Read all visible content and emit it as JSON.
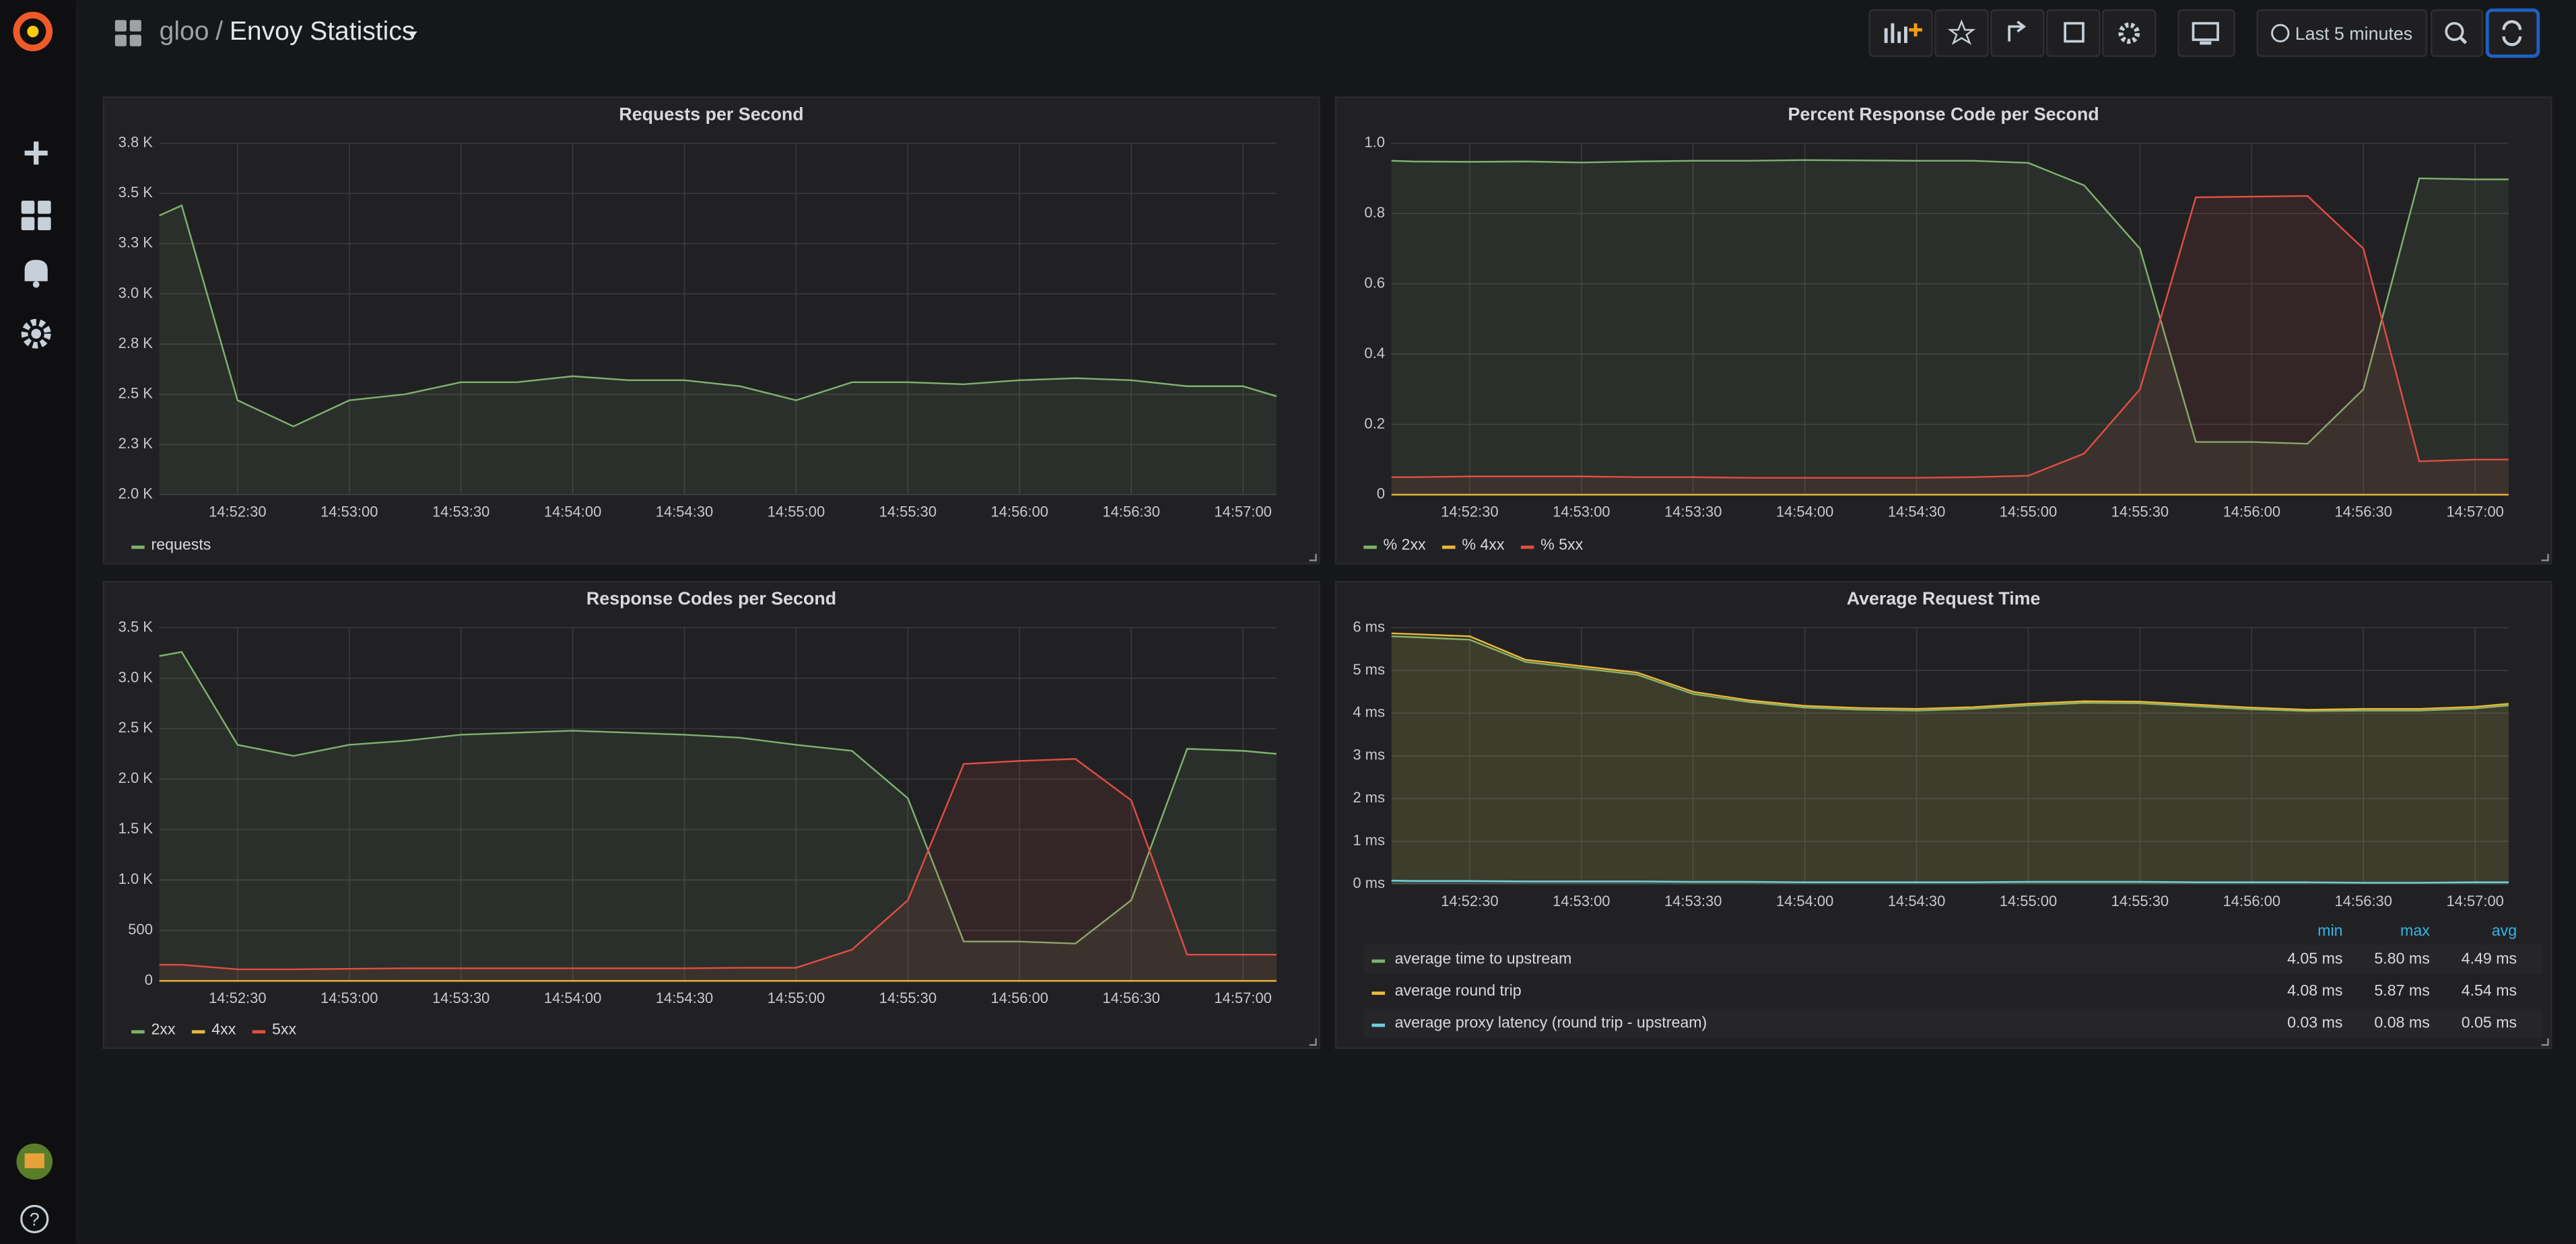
{
  "header": {
    "folder": "gloo",
    "separator": "/",
    "title": "Envoy Statistics",
    "time_range": "Last 5 minutes"
  },
  "sidebar": {
    "help": "?"
  },
  "chart_data": [
    {
      "type": "line",
      "title": "Requests per Second",
      "fill": true,
      "grid": true,
      "x": [
        "14:52:09",
        "14:52:15",
        "14:52:30",
        "14:52:45",
        "14:53:00",
        "14:53:15",
        "14:53:30",
        "14:53:45",
        "14:54:00",
        "14:54:15",
        "14:54:30",
        "14:54:45",
        "14:55:00",
        "14:55:15",
        "14:55:30",
        "14:55:45",
        "14:56:00",
        "14:56:15",
        "14:56:30",
        "14:56:45",
        "14:57:00",
        "14:57:09"
      ],
      "xlim": [
        "14:52:09",
        "14:57:09"
      ],
      "xticks": [
        "14:52:30",
        "14:53:00",
        "14:53:30",
        "14:54:00",
        "14:54:30",
        "14:55:00",
        "14:55:30",
        "14:56:00",
        "14:56:30",
        "14:57:00"
      ],
      "ylim": [
        2000,
        3750
      ],
      "yticks": [
        {
          "value": 2000,
          "label": "2.0 K"
        },
        {
          "value": 2250,
          "label": "2.3 K"
        },
        {
          "value": 2500,
          "label": "2.5 K"
        },
        {
          "value": 2750,
          "label": "2.8 K"
        },
        {
          "value": 3000,
          "label": "3.0 K"
        },
        {
          "value": 3250,
          "label": "3.3 K"
        },
        {
          "value": 3500,
          "label": "3.5 K"
        },
        {
          "value": 3750,
          "label": "3.8 K"
        }
      ],
      "series": [
        {
          "name": "requests",
          "color": "#7eb26d",
          "values": [
            3390,
            3440,
            2470,
            2340,
            2470,
            2500,
            2560,
            2560,
            2590,
            2570,
            2570,
            2540,
            2470,
            2560,
            2560,
            2550,
            2570,
            2580,
            2570,
            2540,
            2540,
            2490
          ]
        }
      ]
    },
    {
      "type": "line",
      "title": "Percent Response Code per Second",
      "fill": true,
      "grid": true,
      "x": [
        "14:52:09",
        "14:52:15",
        "14:52:30",
        "14:52:45",
        "14:53:00",
        "14:53:15",
        "14:53:30",
        "14:53:45",
        "14:54:00",
        "14:54:15",
        "14:54:30",
        "14:54:45",
        "14:55:00",
        "14:55:15",
        "14:55:30",
        "14:55:45",
        "14:56:00",
        "14:56:15",
        "14:56:30",
        "14:56:45",
        "14:57:00",
        "14:57:09"
      ],
      "xlim": [
        "14:52:09",
        "14:57:09"
      ],
      "xticks": [
        "14:52:30",
        "14:53:00",
        "14:53:30",
        "14:54:00",
        "14:54:30",
        "14:55:00",
        "14:55:30",
        "14:56:00",
        "14:56:30",
        "14:57:00"
      ],
      "ylim": [
        0,
        1
      ],
      "yticks": [
        0,
        0.2,
        0.4,
        0.6,
        0.8,
        {
          "value": 1,
          "label": "1.0"
        }
      ],
      "series": [
        {
          "name": "% 2xx",
          "color": "#7eb26d",
          "values": [
            0.95,
            0.948,
            0.947,
            0.948,
            0.945,
            0.948,
            0.95,
            0.95,
            0.952,
            0.951,
            0.95,
            0.95,
            0.944,
            0.88,
            0.7,
            0.15,
            0.15,
            0.145,
            0.3,
            0.9,
            0.897,
            0.897
          ]
        },
        {
          "name": "% 4xx",
          "color": "#eab839",
          "values": [
            0,
            0,
            0,
            0,
            0,
            0,
            0,
            0,
            0,
            0,
            0,
            0,
            0,
            0,
            0,
            0,
            0,
            0,
            0,
            0,
            0,
            0
          ]
        },
        {
          "name": "% 5xx",
          "color": "#e24d42",
          "values": [
            0.05,
            0.05,
            0.052,
            0.052,
            0.052,
            0.05,
            0.05,
            0.048,
            0.048,
            0.048,
            0.048,
            0.05,
            0.054,
            0.117,
            0.3,
            0.846,
            0.848,
            0.85,
            0.7,
            0.095,
            0.1,
            0.1
          ]
        }
      ]
    },
    {
      "type": "line",
      "title": "Response Codes per Second",
      "fill": true,
      "grid": true,
      "x": [
        "14:52:09",
        "14:52:15",
        "14:52:30",
        "14:52:45",
        "14:53:00",
        "14:53:15",
        "14:53:30",
        "14:53:45",
        "14:54:00",
        "14:54:15",
        "14:54:30",
        "14:54:45",
        "14:55:00",
        "14:55:15",
        "14:55:30",
        "14:55:45",
        "14:56:00",
        "14:56:15",
        "14:56:30",
        "14:56:45",
        "14:57:00",
        "14:57:09"
      ],
      "xlim": [
        "14:52:09",
        "14:57:09"
      ],
      "xticks": [
        "14:52:30",
        "14:53:00",
        "14:53:30",
        "14:54:00",
        "14:54:30",
        "14:55:00",
        "14:55:30",
        "14:56:00",
        "14:56:30",
        "14:57:00"
      ],
      "ylim": [
        0,
        3500
      ],
      "yticks": [
        0,
        500,
        {
          "value": 1000,
          "label": "1.0 K"
        },
        {
          "value": 1500,
          "label": "1.5 K"
        },
        {
          "value": 2000,
          "label": "2.0 K"
        },
        {
          "value": 2500,
          "label": "2.5 K"
        },
        {
          "value": 3000,
          "label": "3.0 K"
        },
        {
          "value": 3500,
          "label": "3.5 K"
        }
      ],
      "series": [
        {
          "name": "2xx",
          "color": "#7eb26d",
          "values": [
            3220,
            3260,
            2340,
            2230,
            2340,
            2380,
            2440,
            2460,
            2480,
            2460,
            2440,
            2410,
            2340,
            2280,
            1810,
            390,
            390,
            370,
            800,
            2300,
            2280,
            2250
          ]
        },
        {
          "name": "4xx",
          "color": "#eab839",
          "values": [
            0,
            0,
            0,
            0,
            0,
            0,
            0,
            0,
            0,
            0,
            0,
            0,
            0,
            0,
            0,
            0,
            0,
            0,
            0,
            0,
            0,
            0
          ]
        },
        {
          "name": "5xx",
          "color": "#e24d42",
          "values": [
            160,
            160,
            115,
            115,
            120,
            125,
            125,
            125,
            125,
            125,
            125,
            130,
            130,
            310,
            800,
            2150,
            2180,
            2200,
            1790,
            260,
            260,
            260
          ]
        }
      ]
    },
    {
      "type": "line",
      "title": "Average Request Time",
      "fill": true,
      "grid": true,
      "x": [
        "14:52:09",
        "14:52:15",
        "14:52:30",
        "14:52:45",
        "14:53:00",
        "14:53:15",
        "14:53:30",
        "14:53:45",
        "14:54:00",
        "14:54:15",
        "14:54:30",
        "14:54:45",
        "14:55:00",
        "14:55:15",
        "14:55:30",
        "14:55:45",
        "14:56:00",
        "14:56:15",
        "14:56:30",
        "14:56:45",
        "14:57:00",
        "14:57:09"
      ],
      "xlim": [
        "14:52:09",
        "14:57:09"
      ],
      "xticks": [
        "14:52:30",
        "14:53:00",
        "14:53:30",
        "14:54:00",
        "14:54:30",
        "14:55:00",
        "14:55:30",
        "14:56:00",
        "14:56:30",
        "14:57:00"
      ],
      "ylim": [
        0,
        6
      ],
      "yticks": [
        {
          "value": 0,
          "label": "0 ms"
        },
        {
          "value": 1,
          "label": "1 ms"
        },
        {
          "value": 2,
          "label": "2 ms"
        },
        {
          "value": 3,
          "label": "3 ms"
        },
        {
          "value": 4,
          "label": "4 ms"
        },
        {
          "value": 5,
          "label": "5 ms"
        },
        {
          "value": 6,
          "label": "6 ms"
        }
      ],
      "legend_columns": [
        "min",
        "max",
        "avg"
      ],
      "series": [
        {
          "name": "average time to upstream",
          "color": "#7eb26d",
          "values": [
            5.8,
            5.78,
            5.72,
            5.2,
            5.05,
            4.9,
            4.45,
            4.26,
            4.13,
            4.08,
            4.06,
            4.1,
            4.18,
            4.24,
            4.23,
            4.16,
            4.09,
            4.05,
            4.06,
            4.06,
            4.11,
            4.18
          ],
          "legend_stats": [
            "4.05 ms",
            "5.80 ms",
            "4.49 ms"
          ]
        },
        {
          "name": "average round trip",
          "color": "#eab839",
          "values": [
            5.87,
            5.85,
            5.8,
            5.25,
            5.1,
            4.95,
            4.5,
            4.3,
            4.17,
            4.12,
            4.1,
            4.14,
            4.22,
            4.28,
            4.27,
            4.2,
            4.13,
            4.08,
            4.1,
            4.1,
            4.15,
            4.22
          ],
          "legend_stats": [
            "4.08 ms",
            "5.87 ms",
            "4.54 ms"
          ]
        },
        {
          "name": "average proxy latency (round trip - upstream)",
          "color": "#6ed0e0",
          "values": [
            0.08,
            0.07,
            0.07,
            0.06,
            0.06,
            0.06,
            0.05,
            0.05,
            0.04,
            0.04,
            0.04,
            0.04,
            0.05,
            0.05,
            0.05,
            0.04,
            0.04,
            0.04,
            0.03,
            0.03,
            0.04,
            0.04
          ],
          "legend_stats": [
            "0.03 ms",
            "0.08 ms",
            "0.05 ms"
          ]
        }
      ]
    }
  ]
}
